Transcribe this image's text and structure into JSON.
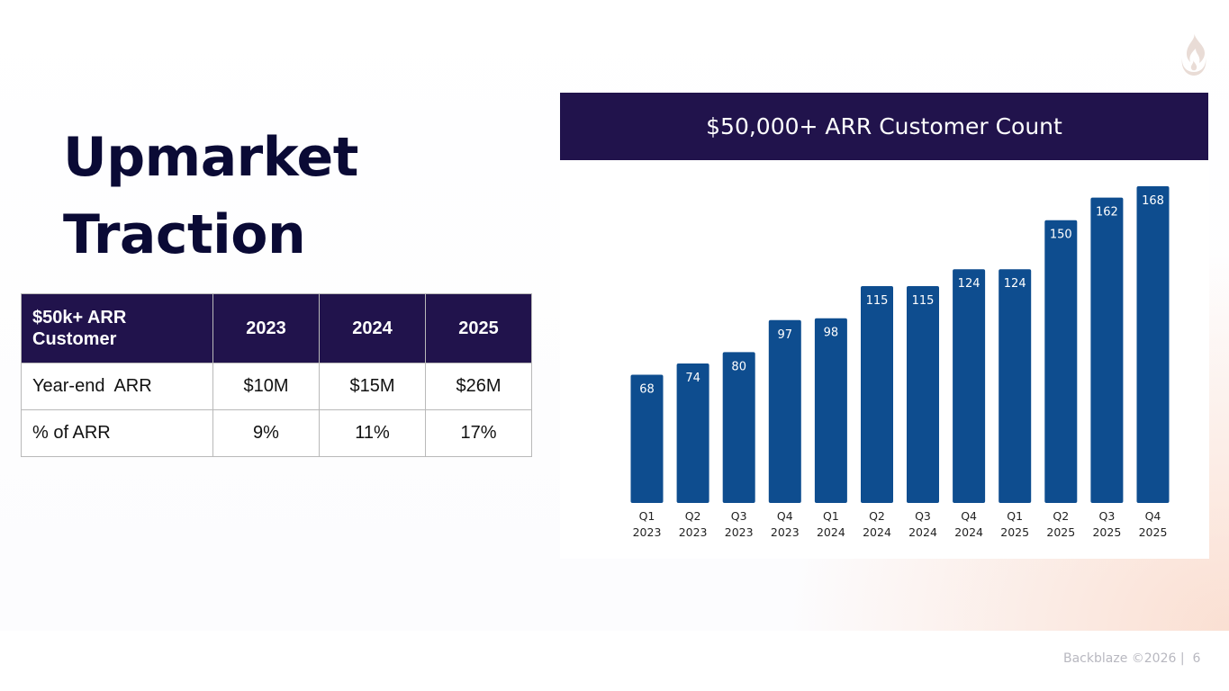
{
  "slide": {
    "title_line1": "Upmarket",
    "title_line2": "Traction",
    "logo_icon": "flame-icon"
  },
  "table": {
    "header": [
      "$50k+ ARR Customer",
      "2023",
      "2024",
      "2025"
    ],
    "rows": [
      [
        "Year-end  ARR",
        "$10M",
        "$15M",
        "$26M"
      ],
      [
        "% of ARR",
        "9%",
        "11%",
        "17%"
      ]
    ]
  },
  "chart_data": {
    "type": "bar",
    "title": "$50,000+ ARR Customer Count",
    "categories": [
      [
        "Q1",
        "2023"
      ],
      [
        "Q2",
        "2023"
      ],
      [
        "Q3",
        "2023"
      ],
      [
        "Q4",
        "2023"
      ],
      [
        "Q1",
        "2024"
      ],
      [
        "Q2",
        "2024"
      ],
      [
        "Q3",
        "2024"
      ],
      [
        "Q4",
        "2024"
      ],
      [
        "Q1",
        "2025"
      ],
      [
        "Q2",
        "2025"
      ],
      [
        "Q3",
        "2025"
      ],
      [
        "Q4",
        "2025"
      ]
    ],
    "values": [
      68,
      74,
      80,
      97,
      98,
      115,
      115,
      124,
      124,
      150,
      162,
      168
    ],
    "xlabel": "",
    "ylabel": "",
    "ylim": [
      0,
      168
    ],
    "grid": false,
    "data_labels": "inside-top",
    "bar_color": "#0e4d8f"
  },
  "footer": {
    "text": "Backblaze ©2026 |  6"
  },
  "colors": {
    "header_bg": "#21134c",
    "title_text": "#0a0a35"
  }
}
